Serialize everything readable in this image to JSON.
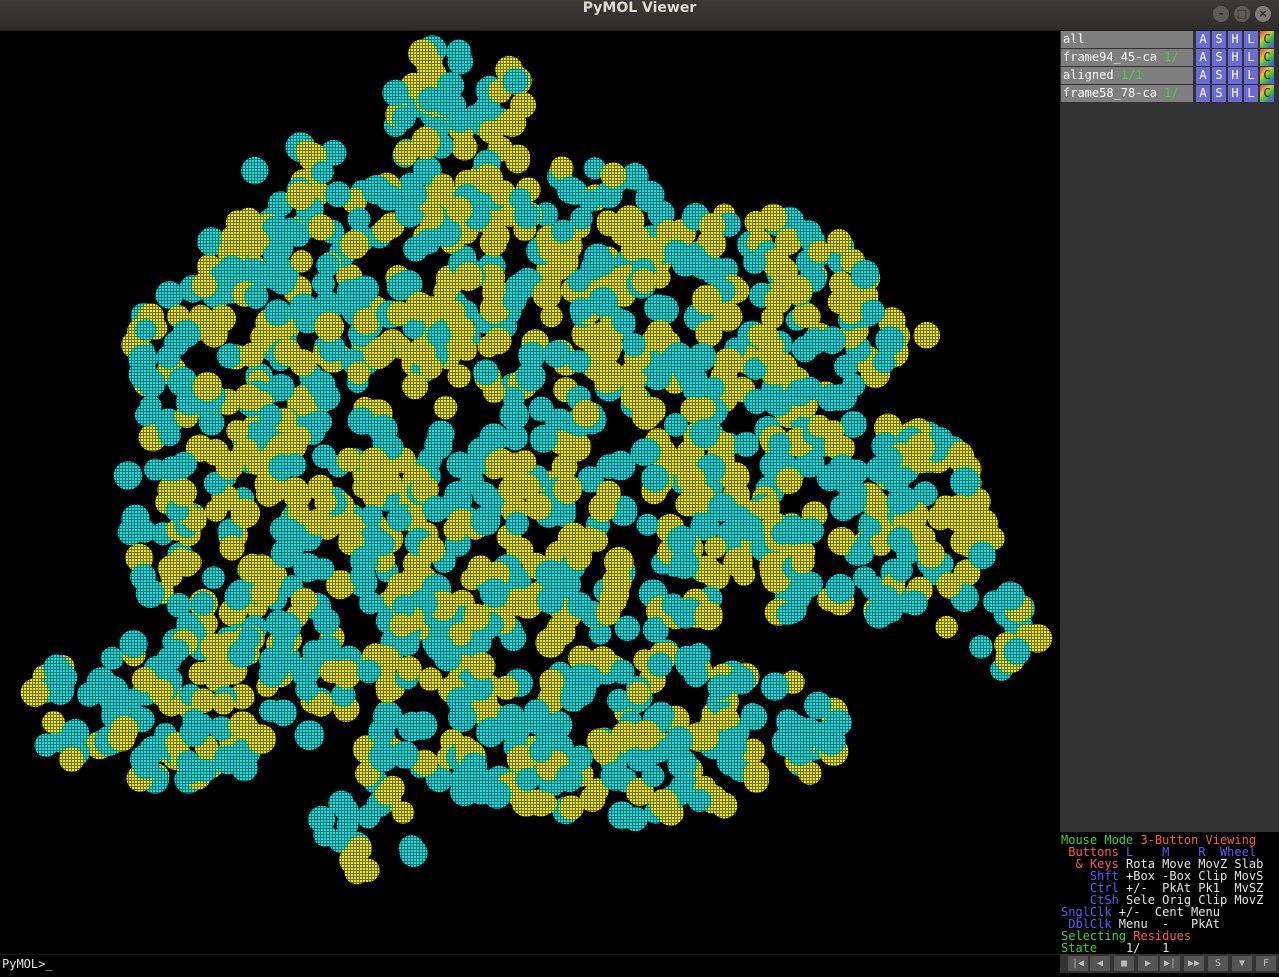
{
  "window": {
    "title": "PyMOL Viewer",
    "buttons": [
      "–",
      "□",
      "×"
    ]
  },
  "objects": [
    {
      "name": "all",
      "state": "",
      "controls": [
        "A",
        "S",
        "H",
        "L",
        "C"
      ]
    },
    {
      "name": "frame94_45-ca",
      "state": "1/",
      "controls": [
        "A",
        "S",
        "H",
        "L",
        "C"
      ]
    },
    {
      "name": "aligned",
      "state": "1/1",
      "controls": [
        "A",
        "S",
        "H",
        "L",
        "C"
      ]
    },
    {
      "name": "frame58_78-ca",
      "state": "1/",
      "controls": [
        "A",
        "S",
        "H",
        "L",
        "C"
      ]
    }
  ],
  "mouse": {
    "l1a": "Mouse Mode ",
    "l1b": "3-Button Viewing",
    "l2a": " Buttons ",
    "l2b": "L    M    R  Wheel",
    "l3a": "  & Keys ",
    "l3b": "Rota Move MovZ Slab",
    "l4a": "    Shft ",
    "l4b": "+Box -Box Clip MovS",
    "l5a": "    Ctrl ",
    "l5b": "+/-  PkAt Pk1  MvSZ",
    "l6a": "    CtSh ",
    "l6b": "Sele Orig Clip MovZ",
    "l7a": "SnglClk ",
    "l7b": "+/-  Cent Menu",
    "l8a": " DblClk ",
    "l8b": "Menu  -   PkAt",
    "l9a": "Selecting ",
    "l9b": "Residues",
    "l10a": "State ",
    "l10b": "   1/   1"
  },
  "command": {
    "prompt": "PyMOL>_"
  },
  "playback": [
    "|◀",
    "◀",
    "■",
    "▶",
    "▶|",
    "▶▶",
    "S",
    "▼",
    "F"
  ],
  "colors": {
    "cyan": "#10e8e8",
    "yellow": "#f0ee10",
    "background": "#000000"
  }
}
